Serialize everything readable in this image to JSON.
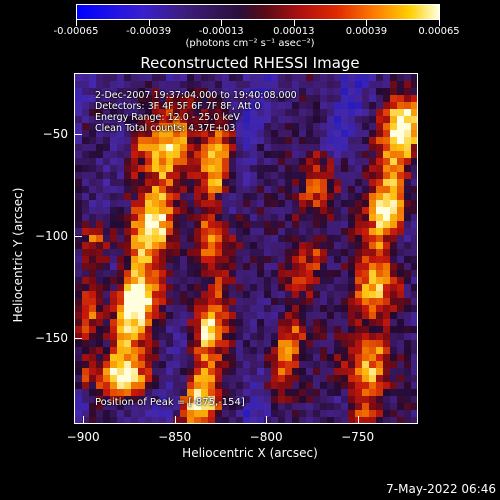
{
  "colorbar": {
    "labels": [
      "-0.00065",
      "-0.00039",
      "-0.00013",
      "0.00013",
      "0.00039",
      "0.00065"
    ],
    "values": [
      -0.00065,
      -0.00039,
      -0.00013,
      0.00013,
      0.00039,
      0.00065
    ],
    "units": "(photons cm⁻² s⁻¹ asec⁻²)"
  },
  "title": "Reconstructed RHESSI Image",
  "info": {
    "time_range": "2-Dec-2007 19:37:04.000 to 19:40:08.000",
    "detectors": "Detectors: 3F 4F 5F 6F 7F 8F, Att 0",
    "energy": "Energy Range: 12.0 - 25.0 keV",
    "clean": "Clean    Total counts: 4.37E+03",
    "peak": "Position of Peak = [-875,-154]"
  },
  "axes": {
    "xlabel": "Heliocentric X (arcsec)",
    "ylabel": "Heliocentric Y (arcsec)",
    "xticks": [
      -900,
      -850,
      -800,
      -750
    ],
    "xtick_labels": [
      "−900",
      "−850",
      "−800",
      "−750"
    ],
    "yticks": [
      -50,
      -100,
      -150
    ],
    "ytick_labels": [
      "−50",
      "−100",
      "−150"
    ],
    "xlim": [
      -905,
      -717
    ],
    "ylim": [
      -192,
      -20
    ]
  },
  "colors": {
    "min": "#0000ff",
    "neutral": "#3a1050",
    "max": "#ffffdf"
  },
  "datestamp": "7-May-2022 06:46"
}
